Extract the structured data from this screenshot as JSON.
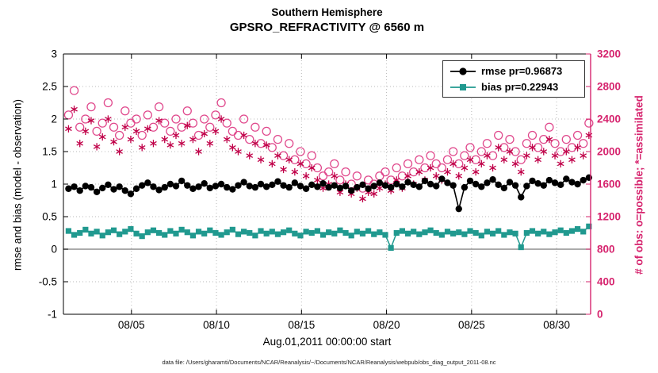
{
  "figure": {
    "title_line1": "Southern Hemisphere",
    "title_line2": "GPSRO_REFRACTIVITY @ 6560 m",
    "xlabel": "Aug.01,2011 00:00:00 start",
    "ylabel_left": "rmse and bias (model - observation)",
    "ylabel_right": "# of obs: o=possible; *=assimilated",
    "caption": "data file: /Users/gharamti/Documents/NCAR/Reanalysis/~/Documents/NCAR/Reanalysis/webpub/obs_diag_output_2011-08.nc"
  },
  "legend": [
    {
      "label": "rmse pr=0.96873",
      "color": "#000000",
      "marker": "filled-circle"
    },
    {
      "label": "bias pr=0.22943",
      "color": "#20998f",
      "marker": "filled-square"
    }
  ],
  "colors": {
    "rmse": "#000000",
    "bias": "#20998f",
    "possible": "#e0488c",
    "assimilated": "#c00048",
    "right_axis": "#d6246e",
    "grid": "#b8b8b8",
    "zero_line": "#8f8f8f"
  },
  "chart_data": {
    "type": "line+scatter",
    "title": "Southern Hemisphere — GPSRO_REFRACTIVITY @ 6560 m",
    "x_axis": {
      "label": "Aug.01,2011 00:00:00 start",
      "range_days": [
        0,
        31
      ],
      "tick_days": [
        4,
        9,
        14,
        19,
        24,
        29
      ],
      "tick_labels": [
        "08/05",
        "08/10",
        "08/15",
        "08/20",
        "08/25",
        "08/30"
      ]
    },
    "y_left": {
      "label": "rmse and bias (model - observation)",
      "range": [
        -1,
        3
      ],
      "ticks": [
        -1,
        -0.5,
        0,
        0.5,
        1,
        1.5,
        2,
        2.5,
        3
      ],
      "tick_labels": [
        "-1",
        "-0.5",
        "0",
        "0.5",
        "1",
        "1.5",
        "2",
        "2.5",
        "3"
      ]
    },
    "y_right": {
      "label": "# of obs: o=possible; *=assimilated",
      "range": [
        0,
        3200
      ],
      "ticks": [
        0,
        400,
        800,
        1200,
        1600,
        2000,
        2400,
        2800,
        3200
      ],
      "tick_labels": [
        "0",
        "400",
        "800",
        "1200",
        "1600",
        "2000",
        "2400",
        "2800",
        "3200"
      ]
    },
    "n_points": 93,
    "x_start_day": 0.3,
    "x_end_day": 30.9,
    "series": [
      {
        "name": "rmse pr=0.96873",
        "axis": "left",
        "marker": "filled-circle",
        "values": [
          0.93,
          0.96,
          0.9,
          0.97,
          0.95,
          0.88,
          0.94,
          0.99,
          0.92,
          0.96,
          0.9,
          0.85,
          0.93,
          0.98,
          1.02,
          0.96,
          0.91,
          0.95,
          1.0,
          0.97,
          1.05,
          0.98,
          0.93,
          0.96,
          1.01,
          0.94,
          0.97,
          1.0,
          0.95,
          0.92,
          0.98,
          1.03,
          0.97,
          0.95,
          1.0,
          0.96,
          0.99,
          1.04,
          0.98,
          0.95,
          1.02,
          0.97,
          0.93,
          0.99,
          0.96,
          1.01,
          0.95,
          0.98,
          0.94,
          0.97,
          0.9,
          0.95,
          0.99,
          0.93,
          0.97,
          1.02,
          0.98,
          0.95,
          1.0,
          0.96,
          1.03,
          0.99,
          0.96,
          1.05,
          1.0,
          0.97,
          1.08,
          1.02,
          0.98,
          0.62,
          0.95,
          1.05,
          1.0,
          0.96,
          1.02,
          1.07,
          0.99,
          0.94,
          1.03,
          0.98,
          0.8,
          0.97,
          1.05,
          1.01,
          0.98,
          1.06,
          1.02,
          0.99,
          1.08,
          1.03,
          1.0,
          1.06,
          1.1
        ]
      },
      {
        "name": "bias pr=0.22943",
        "axis": "left",
        "marker": "filled-square",
        "values": [
          0.28,
          0.22,
          0.25,
          0.3,
          0.24,
          0.27,
          0.21,
          0.26,
          0.29,
          0.23,
          0.27,
          0.31,
          0.24,
          0.2,
          0.26,
          0.29,
          0.25,
          0.22,
          0.28,
          0.24,
          0.3,
          0.26,
          0.21,
          0.27,
          0.24,
          0.29,
          0.25,
          0.22,
          0.26,
          0.3,
          0.23,
          0.27,
          0.25,
          0.21,
          0.28,
          0.24,
          0.27,
          0.23,
          0.26,
          0.29,
          0.24,
          0.21,
          0.27,
          0.25,
          0.28,
          0.22,
          0.26,
          0.24,
          0.29,
          0.25,
          0.21,
          0.27,
          0.24,
          0.28,
          0.23,
          0.26,
          0.22,
          0.02,
          0.25,
          0.28,
          0.24,
          0.27,
          0.23,
          0.26,
          0.29,
          0.25,
          0.22,
          0.27,
          0.24,
          0.26,
          0.23,
          0.28,
          0.25,
          0.21,
          0.27,
          0.24,
          0.28,
          0.22,
          0.26,
          0.24,
          0.03,
          0.25,
          0.28,
          0.24,
          0.27,
          0.23,
          0.26,
          0.29,
          0.25,
          0.28,
          0.31,
          0.27,
          0.35
        ]
      },
      {
        "name": "possible obs",
        "axis": "right",
        "marker": "open-circle",
        "values": [
          2450,
          2750,
          2300,
          2400,
          2550,
          2250,
          2350,
          2600,
          2300,
          2200,
          2500,
          2350,
          2400,
          2200,
          2450,
          2300,
          2550,
          2350,
          2250,
          2400,
          2300,
          2500,
          2350,
          2200,
          2400,
          2300,
          2450,
          2600,
          2350,
          2250,
          2200,
          2400,
          2150,
          2300,
          2100,
          2250,
          2050,
          2150,
          1950,
          2100,
          1900,
          2000,
          1850,
          1950,
          1800,
          1700,
          1750,
          1850,
          1650,
          1750,
          1600,
          1700,
          1550,
          1650,
          1600,
          1700,
          1750,
          1650,
          1800,
          1700,
          1850,
          1750,
          1900,
          1800,
          1950,
          1850,
          1800,
          1900,
          2000,
          1850,
          1950,
          2050,
          1900,
          2000,
          2100,
          1950,
          2200,
          2050,
          2150,
          2000,
          1900,
          2100,
          2200,
          2050,
          2150,
          2300,
          2100,
          2000,
          2150,
          2050,
          2200,
          2100,
          2350
        ]
      },
      {
        "name": "assimilated obs",
        "axis": "right",
        "marker": "asterisk",
        "values": [
          2280,
          2520,
          2100,
          2250,
          2380,
          2060,
          2180,
          2400,
          2120,
          2000,
          2300,
          2150,
          2250,
          2050,
          2280,
          2100,
          2380,
          2150,
          2080,
          2200,
          2100,
          2320,
          2150,
          2000,
          2220,
          2100,
          2250,
          2400,
          2150,
          2050,
          2000,
          2200,
          1950,
          2100,
          1900,
          2080,
          1850,
          1950,
          1780,
          1900,
          1750,
          1850,
          1700,
          1800,
          1650,
          1550,
          1600,
          1700,
          1500,
          1600,
          1480,
          1550,
          1420,
          1500,
          1480,
          1550,
          1600,
          1520,
          1650,
          1550,
          1700,
          1600,
          1750,
          1650,
          1800,
          1700,
          1650,
          1750,
          1850,
          1700,
          1800,
          1900,
          1750,
          1850,
          1950,
          1800,
          2050,
          1900,
          2000,
          1850,
          1750,
          1950,
          2050,
          1900,
          2000,
          2150,
          1950,
          1850,
          2000,
          1900,
          2050,
          1950,
          2200
        ]
      }
    ]
  }
}
